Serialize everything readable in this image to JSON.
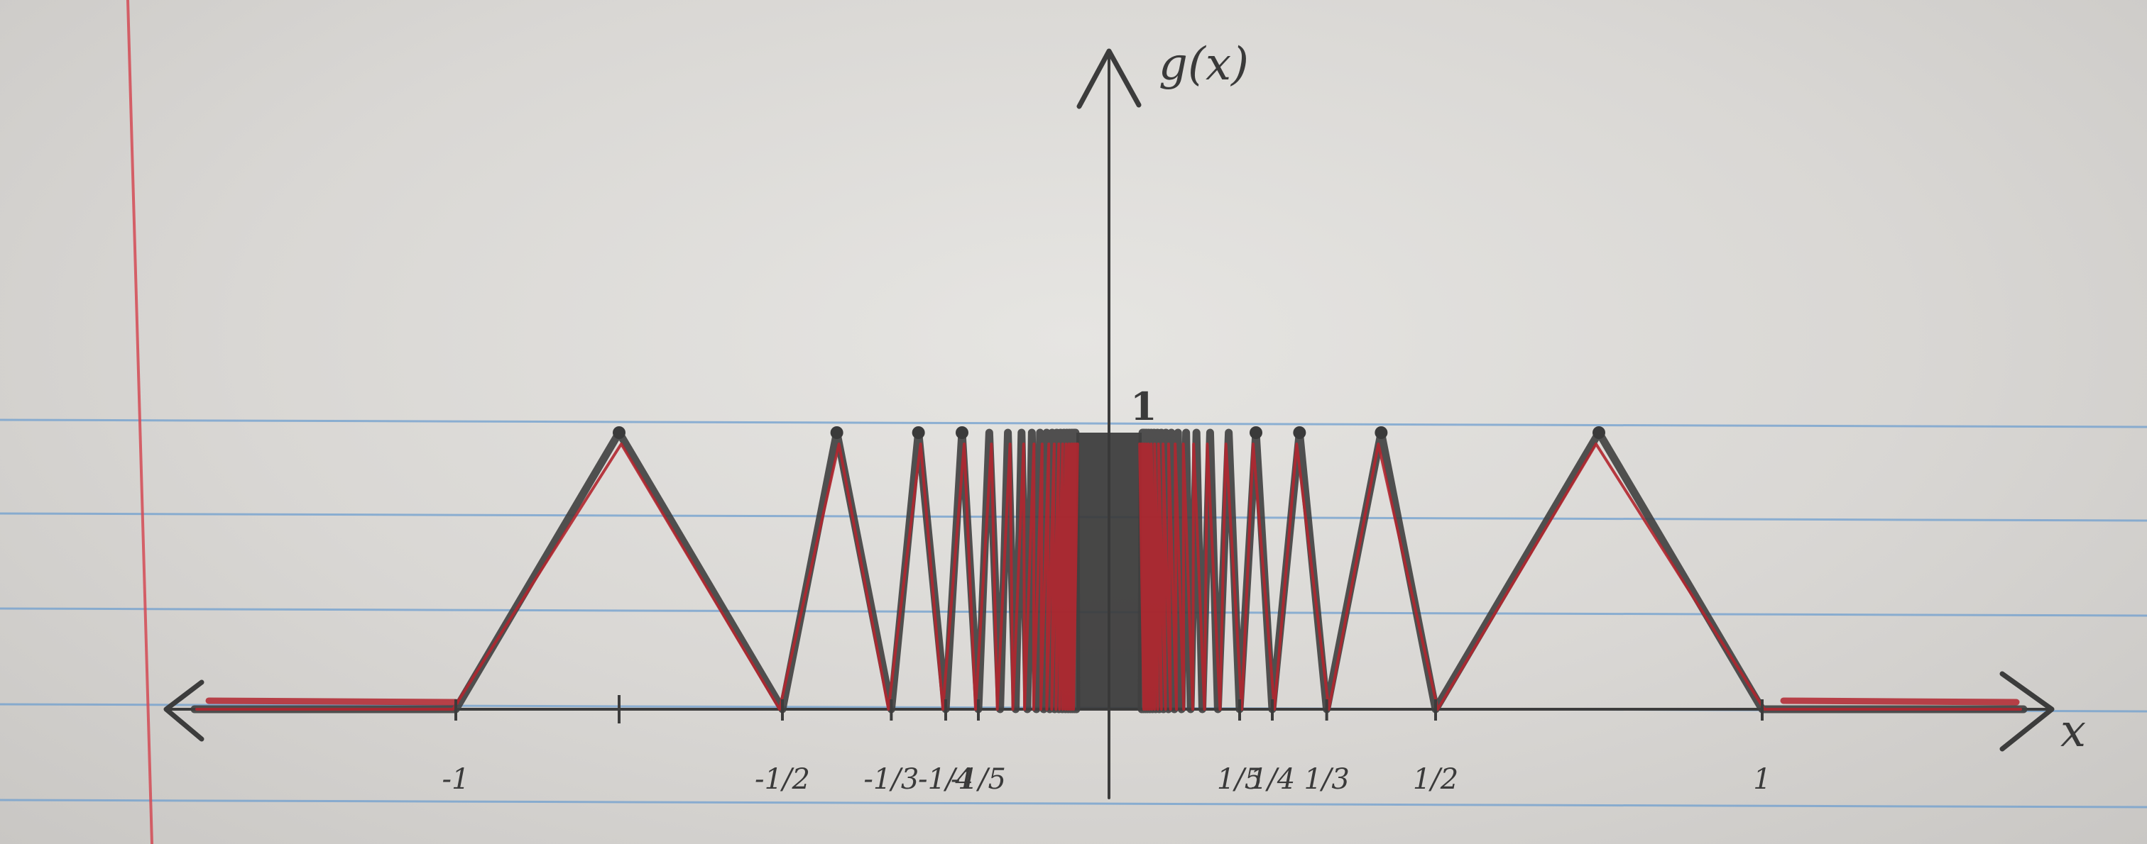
{
  "chart_data": {
    "type": "line",
    "xlabel": "x",
    "ylabel": "g(x)",
    "peak_label": "1",
    "xlim": [
      -1.4,
      1.4
    ],
    "ylim": [
      0,
      1
    ],
    "x_tick_labels": [
      {
        "value": -1,
        "label": "-1"
      },
      {
        "value": -0.5,
        "label": "-1/2"
      },
      {
        "value": -0.3333,
        "label": "-1/3"
      },
      {
        "value": -0.25,
        "label": "-1/4"
      },
      {
        "value": -0.2,
        "label": "-1/5"
      },
      {
        "value": 0.2,
        "label": "1/5"
      },
      {
        "value": 0.25,
        "label": "1/4"
      },
      {
        "value": 0.3333,
        "label": "1/3"
      },
      {
        "value": 0.5,
        "label": "1/2"
      },
      {
        "value": 1,
        "label": "1"
      }
    ],
    "series": [
      {
        "points": [
          [
            -1.4,
            0
          ],
          [
            -1,
            0
          ],
          [
            -0.75,
            1
          ],
          [
            -0.5,
            0
          ],
          [
            -0.4167,
            1
          ],
          [
            -0.3333,
            0
          ],
          [
            -0.2917,
            1
          ],
          [
            -0.25,
            0
          ],
          [
            -0.225,
            1
          ],
          [
            -0.2,
            0
          ],
          [
            -0.1833,
            1
          ],
          [
            -0.1667,
            0
          ],
          [
            -0.1548,
            1
          ],
          [
            -0.1429,
            0
          ],
          [
            -0.1339,
            1
          ],
          [
            -0.125,
            0
          ],
          [
            -0.1181,
            1
          ],
          [
            -0.1111,
            0
          ],
          [
            -0.1056,
            1
          ],
          [
            -0.1,
            0
          ],
          [
            -0.0955,
            1
          ],
          [
            -0.0909,
            0
          ],
          [
            -0.0871,
            1
          ],
          [
            -0.0833,
            0
          ],
          [
            -0.0801,
            1
          ],
          [
            -0.0769,
            0
          ],
          [
            -0.0742,
            1
          ],
          [
            -0.0714,
            0
          ],
          [
            -0.069,
            1
          ],
          [
            -0.0667,
            0
          ],
          [
            -0.0646,
            1
          ],
          [
            -0.0625,
            0
          ],
          [
            -0.0607,
            1
          ],
          [
            -0.0588,
            0
          ],
          [
            -0.0572,
            1
          ],
          [
            -0.0556,
            0
          ],
          [
            -0.0541,
            1
          ],
          [
            -0.0526,
            0
          ],
          [
            -0.0513,
            1
          ],
          [
            -0.05,
            0
          ],
          [
            0.05,
            0
          ],
          [
            0.0513,
            1
          ],
          [
            0.0526,
            0
          ],
          [
            0.0541,
            1
          ],
          [
            0.0556,
            0
          ],
          [
            0.0572,
            1
          ],
          [
            0.0588,
            0
          ],
          [
            0.0607,
            1
          ],
          [
            0.0625,
            0
          ],
          [
            0.0646,
            1
          ],
          [
            0.0667,
            0
          ],
          [
            0.069,
            1
          ],
          [
            0.0714,
            0
          ],
          [
            0.0742,
            1
          ],
          [
            0.0769,
            0
          ],
          [
            0.0801,
            1
          ],
          [
            0.0833,
            0
          ],
          [
            0.0871,
            1
          ],
          [
            0.0909,
            0
          ],
          [
            0.0955,
            1
          ],
          [
            0.1,
            0
          ],
          [
            0.1056,
            1
          ],
          [
            0.1111,
            0
          ],
          [
            0.1181,
            1
          ],
          [
            0.125,
            0
          ],
          [
            0.1339,
            1
          ],
          [
            0.1429,
            0
          ],
          [
            0.1548,
            1
          ],
          [
            0.1667,
            0
          ],
          [
            0.1833,
            1
          ],
          [
            0.2,
            0
          ],
          [
            0.225,
            1
          ],
          [
            0.25,
            0
          ],
          [
            0.2917,
            1
          ],
          [
            0.3333,
            0
          ],
          [
            0.4167,
            1
          ],
          [
            0.5,
            0
          ],
          [
            0.75,
            1
          ],
          [
            1,
            0
          ],
          [
            1.4,
            0
          ]
        ]
      }
    ],
    "center_band": [
      -0.05,
      0.05
    ],
    "grid": false,
    "colors": {
      "graphite": "#3f3f3f",
      "red_ink": "#b1262f",
      "ruled_lines": "#6f9fcf",
      "margin_line": "#d44b55",
      "paper": "#e2e1de"
    }
  }
}
